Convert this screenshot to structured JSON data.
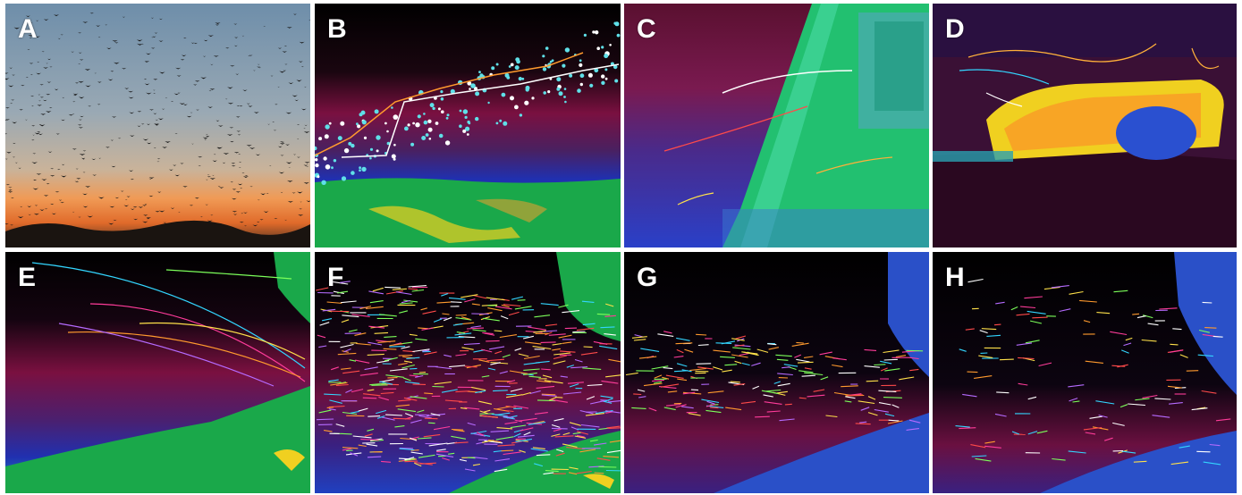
{
  "figure": {
    "panels": [
      {
        "label": "A",
        "kind": "photograph of bat swarm at dusk"
      },
      {
        "label": "B",
        "kind": "thermal image with flight tracks"
      },
      {
        "label": "C",
        "kind": "thermal image with flight tracks"
      },
      {
        "label": "D",
        "kind": "thermal image with flight tracks"
      },
      {
        "label": "E",
        "kind": "thermal image with flight tracks"
      },
      {
        "label": "F",
        "kind": "thermal image with flight tracks"
      },
      {
        "label": "G",
        "kind": "thermal image with flight tracks"
      },
      {
        "label": "H",
        "kind": "thermal image with flight tracks"
      }
    ],
    "track_colors": [
      "#ffffff",
      "#ff9a2e",
      "#ff3c9a",
      "#33d6ff",
      "#ffe14a",
      "#7cff5a",
      "#b56bff",
      "#ff4a4a"
    ]
  }
}
